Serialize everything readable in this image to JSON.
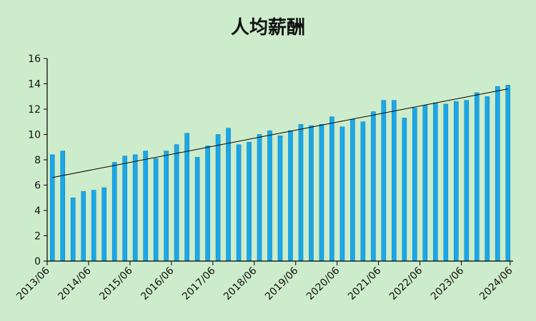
{
  "chart_data": {
    "type": "bar",
    "title": "人均薪酬",
    "ylim": [
      0,
      16
    ],
    "yticks": [
      0,
      2,
      4,
      6,
      8,
      10,
      12,
      14,
      16
    ],
    "xtick_labels": [
      "2013/06",
      "2014/06",
      "2015/06",
      "2016/06",
      "2017/06",
      "2018/06",
      "2019/06",
      "2020/06",
      "2021/06",
      "2022/06",
      "2023/06",
      "2024/06"
    ],
    "categories": [
      "2013/06",
      "2013/09",
      "2013/12",
      "2014/03",
      "2014/06",
      "2014/09",
      "2014/12",
      "2015/03",
      "2015/06",
      "2015/09",
      "2015/12",
      "2016/03",
      "2016/06",
      "2016/09",
      "2016/12",
      "2017/03",
      "2017/06",
      "2017/09",
      "2017/12",
      "2018/03",
      "2018/06",
      "2018/09",
      "2018/12",
      "2019/03",
      "2019/06",
      "2019/09",
      "2019/12",
      "2020/03",
      "2020/06",
      "2020/09",
      "2020/12",
      "2021/03",
      "2021/06",
      "2021/09",
      "2021/12",
      "2022/03",
      "2022/06",
      "2022/09",
      "2022/12",
      "2023/03",
      "2023/06",
      "2023/09",
      "2023/12",
      "2024/03",
      "2024/06"
    ],
    "values": [
      8.4,
      8.7,
      5.0,
      5.5,
      5.6,
      5.8,
      7.8,
      8.3,
      8.4,
      8.7,
      8.1,
      8.7,
      9.2,
      10.1,
      8.2,
      9.1,
      10.0,
      10.5,
      9.2,
      9.4,
      10.0,
      10.3,
      9.9,
      10.3,
      10.8,
      10.7,
      10.8,
      11.4,
      10.6,
      11.2,
      11.0,
      11.8,
      12.7,
      12.7,
      11.3,
      12.1,
      12.3,
      12.5,
      12.4,
      12.6,
      12.7,
      13.3,
      13.0,
      13.8,
      13.9
    ],
    "trendline": {
      "start": 6.6,
      "end": 13.6
    },
    "colors": {
      "bar": "#1aa7e8",
      "bar_edge": "#0d7fb5",
      "trendline": "#000000",
      "background": "#cdeccb",
      "axis": "#000000"
    },
    "grid": false,
    "legend": "none"
  }
}
